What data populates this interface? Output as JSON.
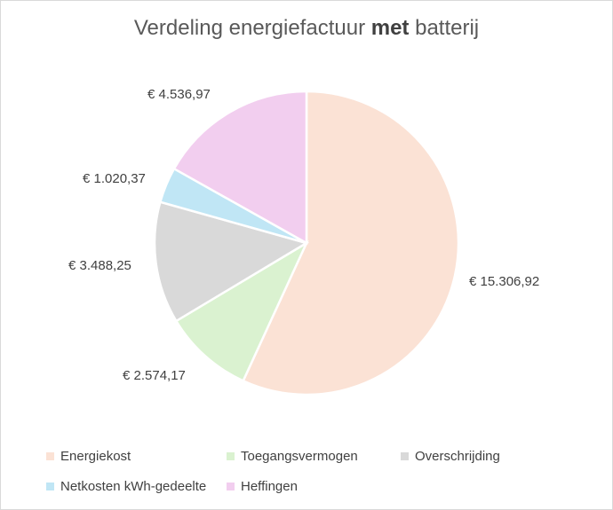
{
  "chart_data": {
    "type": "pie",
    "title_prefix": "Verdeling energiefactuur ",
    "title_bold": "met",
    "title_suffix": " batterij",
    "slices": [
      {
        "label": "Energiekost",
        "value": 15306.92,
        "display": "€ 15.306,92",
        "color": "#FBE2D5"
      },
      {
        "label": "Toegangsvermogen",
        "value": 2574.17,
        "display": "€ 2.574,17",
        "color": "#DAF2D0"
      },
      {
        "label": "Overschrijding",
        "value": 3488.25,
        "display": "€ 3.488,25",
        "color": "#D9D9D9"
      },
      {
        "label": "Netkosten kWh-gedeelte",
        "value": 1020.37,
        "display": "€ 1.020,37",
        "color": "#C0E6F5"
      },
      {
        "label": "Heffingen",
        "value": 4536.97,
        "display": "€ 4.536,97",
        "color": "#F2CEEF"
      }
    ],
    "legend_position": "bottom"
  }
}
